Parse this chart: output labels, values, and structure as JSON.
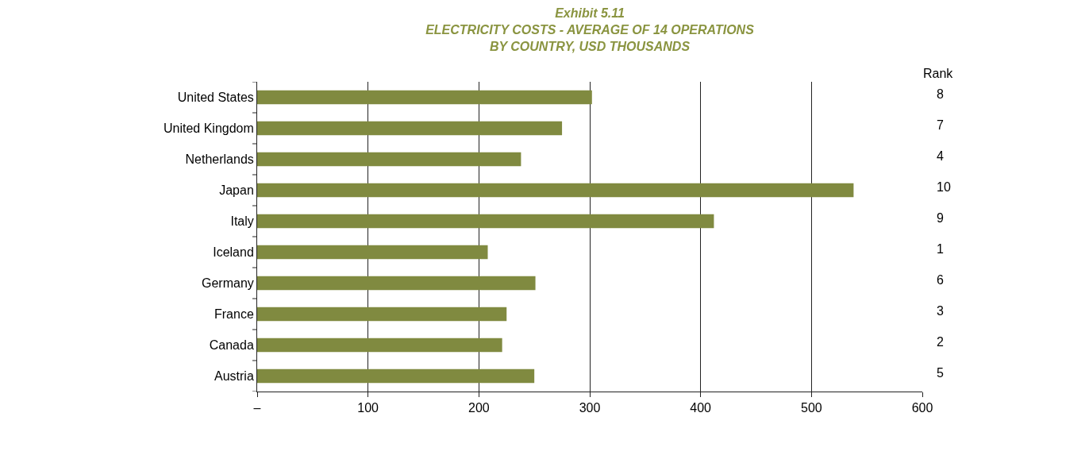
{
  "chart_data": {
    "type": "bar",
    "orientation": "horizontal",
    "title": "Exhibit 5.11\nELECTRICITY COSTS - AVERAGE OF 14 OPERATIONS\nBY COUNTRY, USD THOUSANDS",
    "categories": [
      "United States",
      "United Kingdom",
      "Netherlands",
      "Japan",
      "Italy",
      "Iceland",
      "Germany",
      "France",
      "Canada",
      "Austria"
    ],
    "values": [
      302,
      275,
      238,
      538,
      412,
      208,
      251,
      225,
      221,
      250
    ],
    "color": "#808a40",
    "xlim": [
      0,
      600
    ],
    "xticks": [
      {
        "value": 0,
        "label": "–"
      },
      100,
      200,
      300,
      400,
      500,
      600
    ],
    "grid": "x",
    "annotations": [
      "Rank",
      "8",
      "7",
      "4",
      "10",
      "9",
      "1",
      "6",
      "3",
      "2",
      "5"
    ]
  }
}
